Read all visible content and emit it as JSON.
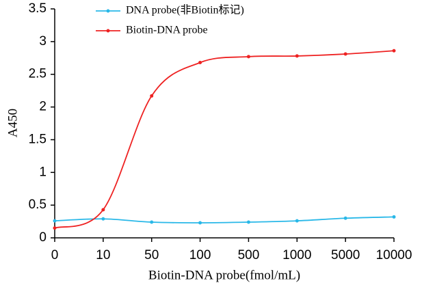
{
  "chart_data": {
    "type": "line",
    "categories": [
      "0",
      "10",
      "50",
      "100",
      "500",
      "1000",
      "5000",
      "10000"
    ],
    "series": [
      {
        "name": "DNA probe(非Biotin标记)",
        "color": "#29b8e8",
        "values": [
          0.26,
          0.29,
          0.24,
          0.23,
          0.24,
          0.26,
          0.3,
          0.32
        ]
      },
      {
        "name": "Biotin-DNA probe",
        "color": "#ee2222",
        "values": [
          0.15,
          0.43,
          2.17,
          2.68,
          2.77,
          2.78,
          2.81,
          2.86
        ]
      }
    ],
    "x_label": "Biotin-DNA probe(fmol/mL)",
    "y_label": "A450",
    "ylim": [
      0,
      3.5
    ],
    "yticks": [
      0,
      0.5,
      1,
      1.5,
      2,
      2.5,
      3,
      3.5
    ]
  }
}
